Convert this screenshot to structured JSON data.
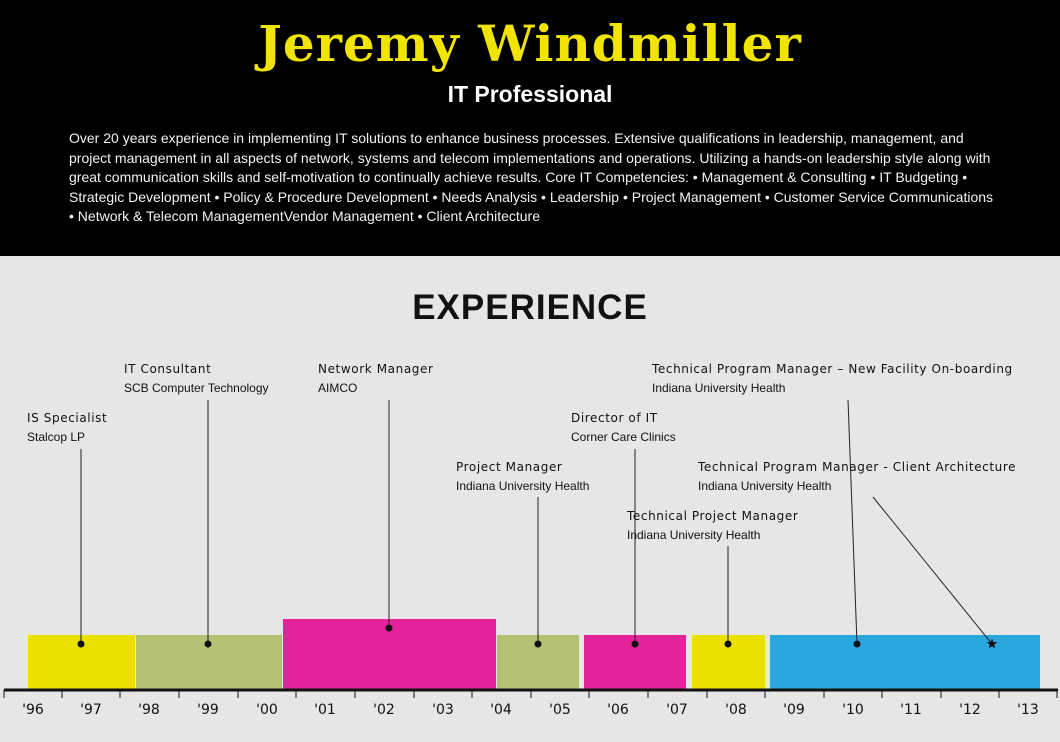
{
  "header": {
    "name": "Jeremy Windmiller",
    "subtitle": "IT Professional",
    "summary": "Over 20 years experience in implementing IT solutions to enhance business processes. Extensive qualifications in leadership, management, and project management in all aspects of network, systems and telecom implementations and operations. Utilizing a hands-on leadership style along with great communication skills and self-motivation to continually achieve results. Core IT Competencies: • Management & Consulting • IT Budgeting • Strategic Development • Policy & Procedure Development • Needs Analysis • Leadership • Project Management • Customer Service Communications • Network & Telecom ManagementVendor Management • Client Architecture"
  },
  "experience": {
    "title": "EXPERIENCE",
    "years": [
      "'96",
      "'97",
      "'98",
      "'99",
      "'00",
      "'01",
      "'02",
      "'03",
      "'04",
      "'05",
      "'06",
      "'07",
      "'08",
      "'09",
      "'10",
      "'11",
      "'12",
      "'13"
    ],
    "jobs": [
      {
        "title": "IS Specialist",
        "org": "Stalcop LP",
        "color": "#ebe000"
      },
      {
        "title": "IT Consultant",
        "org": "SCB Computer Technology",
        "color": "#b5c172"
      },
      {
        "title": "Network Manager",
        "org": "AIMCO",
        "color": "#e5229a"
      },
      {
        "title": "Project Manager",
        "org": "Indiana University Health",
        "color": "#b5c172"
      },
      {
        "title": "Director of IT",
        "org": "Corner Care Clinics",
        "color": "#e5229a"
      },
      {
        "title": "Technical Project Manager",
        "org": "Indiana University Health",
        "color": "#ebe000"
      },
      {
        "title": "Technical Program Manager – New Facility On-boarding",
        "org": "Indiana University Health",
        "color": "#29a8e0"
      },
      {
        "title": "Technical Program Manager - Client Architecture",
        "org": "Indiana University Health",
        "color": "#29a8e0"
      }
    ]
  }
}
